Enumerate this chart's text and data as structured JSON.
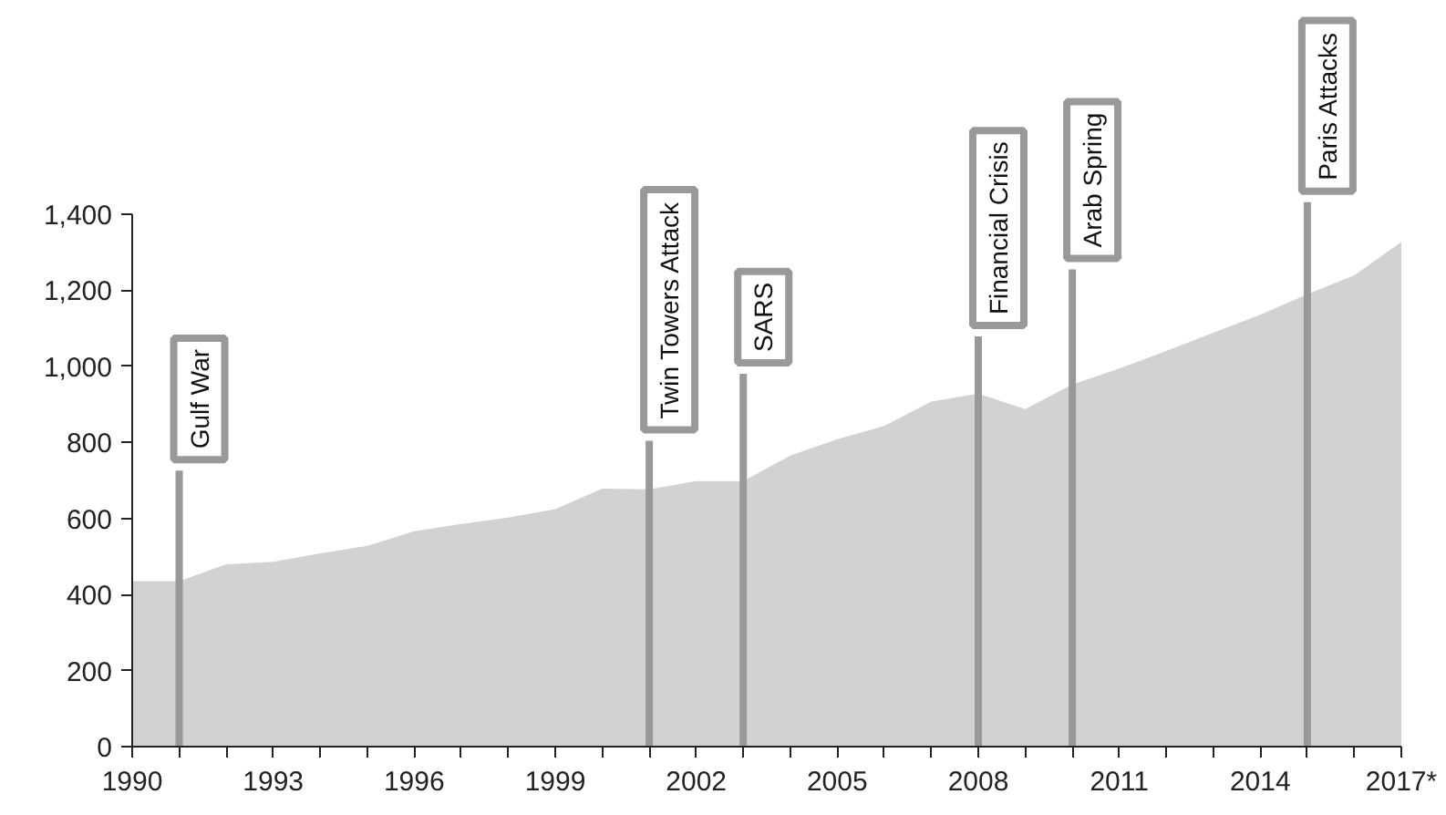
{
  "chart_data": {
    "type": "area",
    "x": [
      1990,
      1991,
      1992,
      1993,
      1994,
      1995,
      1996,
      1997,
      1998,
      1999,
      2000,
      2001,
      2002,
      2003,
      2004,
      2005,
      2006,
      2007,
      2008,
      2009,
      2010,
      2011,
      2012,
      2013,
      2014,
      2015,
      2016,
      2017
    ],
    "series": [
      {
        "color": "#d1d2d4",
        "values": [
          435,
          435,
          479,
          486,
          508,
          528,
          566,
          585,
          602,
          624,
          678,
          676,
          698,
          698,
          765,
          808,
          843,
          907,
          928,
          887,
          952,
          994,
          1040,
          1088,
          1135,
          1189,
          1239,
          1326
        ]
      }
    ],
    "xlim": [
      1990,
      2017
    ],
    "xticks": [
      1990,
      {
        "value": 1991,
        "label": null
      },
      {
        "value": 1992,
        "label": null
      },
      1993,
      {
        "value": 1994,
        "label": null
      },
      {
        "value": 1995,
        "label": null
      },
      1996,
      {
        "value": 1997,
        "label": null
      },
      {
        "value": 1998,
        "label": null
      },
      1999,
      {
        "value": 2000,
        "label": null
      },
      {
        "value": 2001,
        "label": null
      },
      2002,
      {
        "value": 2003,
        "label": null
      },
      {
        "value": 2004,
        "label": null
      },
      2005,
      {
        "value": 2006,
        "label": null
      },
      {
        "value": 2007,
        "label": null
      },
      2008,
      {
        "value": 2009,
        "label": null
      },
      {
        "value": 2010,
        "label": null
      },
      2011,
      {
        "value": 2012,
        "label": null
      },
      {
        "value": 2013,
        "label": null
      },
      2014,
      {
        "value": 2015,
        "label": null
      },
      {
        "value": 2016,
        "label": null
      },
      {
        "value": 2017,
        "label": "2017*"
      }
    ],
    "ylim": [
      0,
      1400
    ],
    "yticks": [
      0,
      200,
      400,
      600,
      800,
      {
        "value": 1000,
        "label": "1,000"
      },
      {
        "value": 1200,
        "label": "1,200"
      },
      {
        "value": 1400,
        "label": "1,400"
      }
    ],
    "ref_lines": [
      {
        "axis": "x",
        "value": 1991,
        "label": "Gulf War",
        "color": "#999999"
      },
      {
        "axis": "x",
        "value": 2001,
        "label": "Twin Towers Attack",
        "color": "#999999"
      },
      {
        "axis": "x",
        "value": 2003,
        "label": "SARS",
        "color": "#999999"
      },
      {
        "axis": "x",
        "value": 2008,
        "label": "Financial Crisis",
        "color": "#999999"
      },
      {
        "axis": "x",
        "value": 2010,
        "label": "Arab Spring",
        "color": "#999999"
      },
      {
        "axis": "x",
        "value": 2015,
        "label": "Paris Attacks",
        "color": "#999999"
      }
    ],
    "grid": false
  }
}
